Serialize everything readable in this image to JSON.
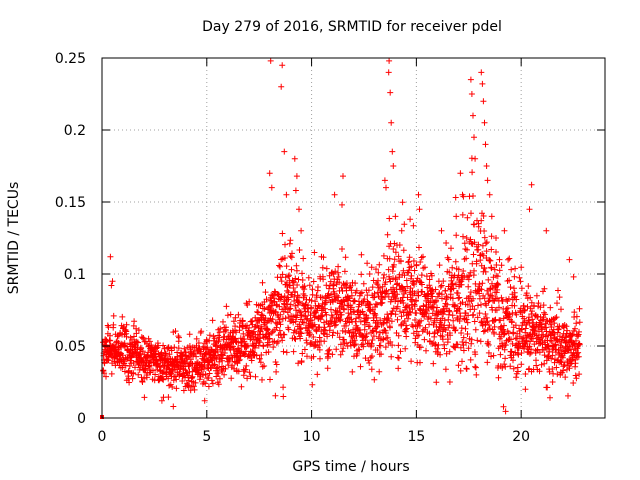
{
  "chart_data": {
    "type": "scatter",
    "title": "Day 279 of 2016, SRMTID for receiver pdel",
    "xlabel": "GPS time / hours",
    "ylabel": "SRMTID / TECUs",
    "xlim": [
      0,
      24
    ],
    "ylim": [
      0,
      0.25
    ],
    "xticks": [
      0,
      5,
      10,
      15,
      20
    ],
    "xtick_labels": [
      "0",
      "5",
      "10",
      "15",
      "20"
    ],
    "yticks": [
      0,
      0.05,
      0.1,
      0.15,
      0.2,
      0.25
    ],
    "ytick_labels": [
      "0",
      "0.05",
      "0.1",
      "0.15",
      "0.2",
      "0.25"
    ],
    "grid": true,
    "marker": "plus",
    "color": "#ff0000",
    "x_step_hours": 0.0083333,
    "x_end_hours": 22.8,
    "trend": {
      "x": [
        0,
        1,
        2,
        3,
        4,
        5,
        6,
        7,
        7.8,
        8.5,
        9,
        9.5,
        10,
        11,
        12,
        13,
        13.5,
        14,
        15,
        16,
        17,
        17.5,
        18,
        18.5,
        19,
        20,
        21,
        22,
        22.8
      ],
      "y": [
        0.05,
        0.045,
        0.042,
        0.038,
        0.036,
        0.04,
        0.05,
        0.052,
        0.06,
        0.075,
        0.082,
        0.075,
        0.07,
        0.075,
        0.068,
        0.065,
        0.08,
        0.085,
        0.078,
        0.07,
        0.075,
        0.09,
        0.095,
        0.088,
        0.065,
        0.06,
        0.055,
        0.05,
        0.045
      ]
    },
    "spread": {
      "x": [
        0,
        5,
        7.8,
        8.5,
        10,
        12,
        13.5,
        14.5,
        16,
        17,
        18.5,
        19.5,
        21,
        22.8
      ],
      "y": [
        0.012,
        0.012,
        0.018,
        0.025,
        0.022,
        0.02,
        0.025,
        0.028,
        0.022,
        0.03,
        0.035,
        0.025,
        0.018,
        0.014
      ]
    },
    "highlights": [
      {
        "x": 0.4,
        "y": 0.112
      },
      {
        "x": 0.5,
        "y": 0.095
      },
      {
        "x": 0.45,
        "y": 0.092
      },
      {
        "x": 8.0,
        "y": 0.17
      },
      {
        "x": 8.05,
        "y": 0.248
      },
      {
        "x": 8.1,
        "y": 0.16
      },
      {
        "x": 8.6,
        "y": 0.245
      },
      {
        "x": 8.55,
        "y": 0.23
      },
      {
        "x": 8.7,
        "y": 0.185
      },
      {
        "x": 8.8,
        "y": 0.155
      },
      {
        "x": 9.2,
        "y": 0.18
      },
      {
        "x": 9.3,
        "y": 0.168
      },
      {
        "x": 9.25,
        "y": 0.158
      },
      {
        "x": 9.4,
        "y": 0.145
      },
      {
        "x": 9.5,
        "y": 0.13
      },
      {
        "x": 11.1,
        "y": 0.155
      },
      {
        "x": 11.5,
        "y": 0.168
      },
      {
        "x": 11.45,
        "y": 0.148
      },
      {
        "x": 13.5,
        "y": 0.165
      },
      {
        "x": 13.55,
        "y": 0.16
      },
      {
        "x": 13.7,
        "y": 0.248
      },
      {
        "x": 13.68,
        "y": 0.24
      },
      {
        "x": 13.75,
        "y": 0.226
      },
      {
        "x": 13.8,
        "y": 0.205
      },
      {
        "x": 13.85,
        "y": 0.185
      },
      {
        "x": 13.9,
        "y": 0.175
      },
      {
        "x": 14.0,
        "y": 0.14
      },
      {
        "x": 14.3,
        "y": 0.13
      },
      {
        "x": 15.1,
        "y": 0.155
      },
      {
        "x": 15.15,
        "y": 0.145
      },
      {
        "x": 16.9,
        "y": 0.14
      },
      {
        "x": 17.1,
        "y": 0.17
      },
      {
        "x": 17.2,
        "y": 0.155
      },
      {
        "x": 17.4,
        "y": 0.125
      },
      {
        "x": 17.6,
        "y": 0.235
      },
      {
        "x": 17.65,
        "y": 0.225
      },
      {
        "x": 17.7,
        "y": 0.21
      },
      {
        "x": 17.75,
        "y": 0.195
      },
      {
        "x": 17.8,
        "y": 0.18
      },
      {
        "x": 18.1,
        "y": 0.24
      },
      {
        "x": 18.15,
        "y": 0.232
      },
      {
        "x": 18.2,
        "y": 0.22
      },
      {
        "x": 18.25,
        "y": 0.205
      },
      {
        "x": 18.3,
        "y": 0.19
      },
      {
        "x": 18.35,
        "y": 0.175
      },
      {
        "x": 18.4,
        "y": 0.165
      },
      {
        "x": 18.5,
        "y": 0.155
      },
      {
        "x": 18.6,
        "y": 0.14
      },
      {
        "x": 18.8,
        "y": 0.125
      },
      {
        "x": 19.2,
        "y": 0.13
      },
      {
        "x": 20.2,
        "y": 0.02
      },
      {
        "x": 20.5,
        "y": 0.162
      },
      {
        "x": 20.4,
        "y": 0.145
      },
      {
        "x": 21.2,
        "y": 0.13
      },
      {
        "x": 22.3,
        "y": 0.11
      },
      {
        "x": 22.5,
        "y": 0.098
      },
      {
        "x": 3.4,
        "y": 0.008
      },
      {
        "x": 4.9,
        "y": 0.012
      },
      {
        "x": 21.5,
        "y": 0.025
      },
      {
        "x": 16.6,
        "y": 0.025
      }
    ],
    "min_point": {
      "x": 0.0,
      "y": 0.0
    },
    "seed": 279
  }
}
